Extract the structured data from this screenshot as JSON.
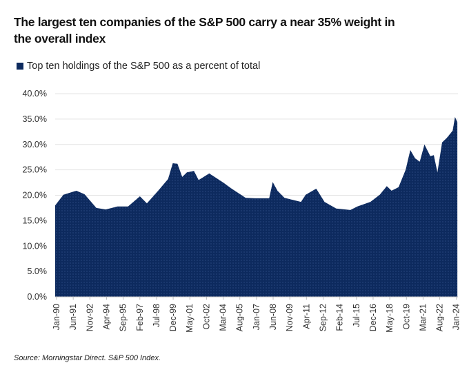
{
  "chart_data": {
    "type": "area",
    "title": "The largest ten companies of the S&P 500 carry a near 35% weight in the overall index",
    "legend": [
      "Top ten holdings of the S&P 500 as a percent of total"
    ],
    "legend_placement": "top-left",
    "source": "Source: Morningstar Direct. S&P 500 Index.",
    "color": "#0d2a5e",
    "ylim": [
      0,
      40
    ],
    "yticks": [
      "0.0%",
      "5.0%",
      "10.0%",
      "15.0%",
      "20.0%",
      "25.0%",
      "30.0%",
      "35.0%",
      "40.0%"
    ],
    "xlim": [
      1990,
      2024.25
    ],
    "xtick_labels": [
      "Jan-90",
      "Jun-91",
      "Nov-92",
      "Apr-94",
      "Sep-95",
      "Feb-97",
      "Jul-98",
      "Dec-99",
      "May-01",
      "Oct-02",
      "Mar-04",
      "Aug-05",
      "Jan-07",
      "Jun-08",
      "Nov-09",
      "Apr-11",
      "Sep-12",
      "Feb-14",
      "Jul-15",
      "Dec-16",
      "May-18",
      "Oct-19",
      "Mar-21",
      "Aug-22",
      "Jan-24"
    ],
    "grid": true,
    "x": [
      1990.0,
      1990.7,
      1991.8,
      1992.5,
      1993.5,
      1994.3,
      1995.3,
      1996.2,
      1997.2,
      1997.8,
      1998.8,
      1999.6,
      2000.0,
      2000.4,
      2000.8,
      2001.2,
      2001.8,
      2002.2,
      2003.1,
      2004.3,
      2005.0,
      2006.2,
      2007.0,
      2008.2,
      2008.5,
      2008.9,
      2009.5,
      2010.9,
      2011.3,
      2012.2,
      2012.9,
      2013.9,
      2015.1,
      2015.7,
      2016.8,
      2017.6,
      2018.2,
      2018.6,
      2019.2,
      2019.8,
      2020.2,
      2020.6,
      2021.0,
      2021.4,
      2021.9,
      2022.2,
      2022.5,
      2022.9,
      2023.3,
      2023.8,
      2024.0,
      2024.2
    ],
    "values": [
      18.0,
      20.1,
      20.9,
      20.2,
      17.5,
      17.2,
      17.8,
      17.8,
      19.8,
      18.4,
      21.0,
      23.2,
      26.3,
      26.2,
      23.6,
      24.5,
      24.8,
      23.0,
      24.3,
      22.5,
      21.3,
      19.5,
      19.4,
      19.4,
      22.6,
      20.9,
      19.5,
      18.7,
      20.1,
      21.3,
      18.7,
      17.4,
      17.1,
      17.8,
      18.7,
      20.1,
      21.8,
      20.9,
      21.6,
      25.0,
      28.9,
      27.3,
      26.6,
      30.0,
      27.7,
      27.9,
      24.5,
      30.4,
      31.3,
      32.7,
      35.4,
      34.4
    ]
  }
}
